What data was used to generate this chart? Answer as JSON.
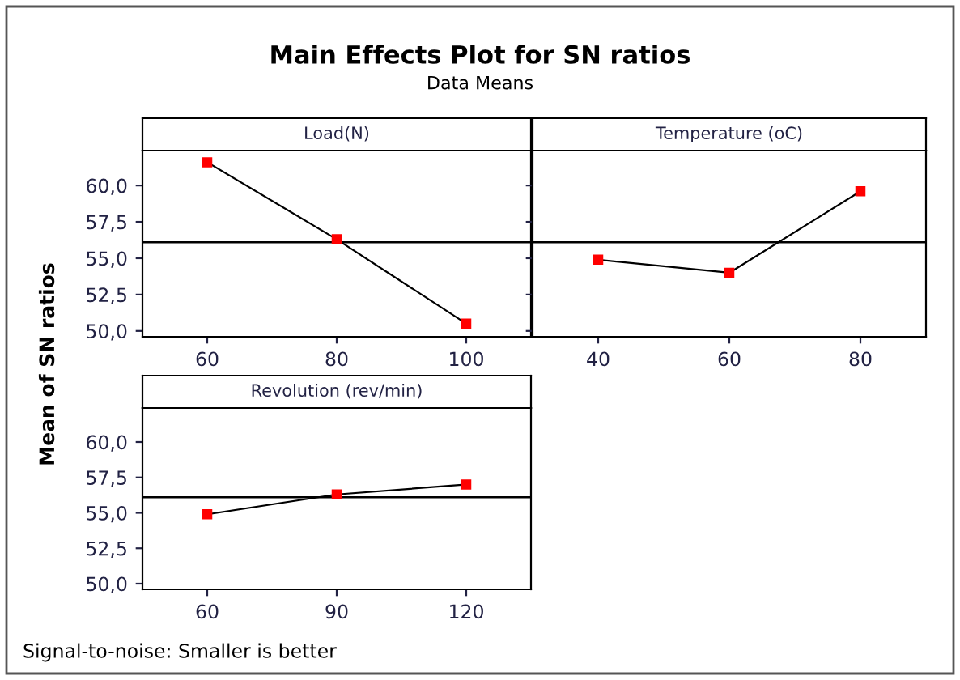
{
  "chart_data": [
    {
      "type": "line",
      "title": "Main Effects Plot for SN ratios",
      "subtitle": "Data Means",
      "ylabel": "Mean of SN ratios",
      "xlabel": "Load(N)",
      "annotations": [
        "Signal-to-noise: Smaller is better"
      ],
      "x": [
        60,
        80,
        100
      ],
      "series": [
        {
          "color": "#000000",
          "values": [
            61.6,
            56.3,
            50.5
          ]
        }
      ],
      "xlim": [
        50,
        110
      ],
      "xticks": [
        60,
        80,
        100
      ],
      "ylim": [
        49.6,
        62.4
      ],
      "yticks": [
        {
          "value": 50,
          "label": "50,0"
        },
        {
          "value": 52.5,
          "label": "52,5"
        },
        {
          "value": 55,
          "label": "55,0"
        },
        {
          "value": 57.5,
          "label": "57,5"
        },
        {
          "value": 60,
          "label": "60,0"
        }
      ],
      "ref_lines": [
        {
          "axis": "y",
          "value": 56.1,
          "color": "#000000"
        }
      ],
      "marker": "square",
      "grid": false,
      "legend": false
    },
    {
      "type": "line",
      "xlabel": "Temperature (oC)",
      "x": [
        40,
        60,
        80
      ],
      "series": [
        {
          "color": "#000000",
          "values": [
            54.9,
            54.0,
            59.6
          ]
        }
      ],
      "xlim": [
        30,
        90
      ],
      "xticks": [
        40,
        60,
        80
      ],
      "ylim": [
        49.6,
        62.4
      ],
      "yticks": [
        {
          "value": 50,
          "label": null
        },
        {
          "value": 52.5,
          "label": null
        },
        {
          "value": 55,
          "label": null
        },
        {
          "value": 57.5,
          "label": null
        },
        {
          "value": 60,
          "label": null
        }
      ],
      "tick_labels": "x",
      "ref_lines": [
        {
          "axis": "y",
          "value": 56.1,
          "color": "#000000"
        }
      ],
      "marker": "square",
      "grid": false,
      "legend": false
    },
    {
      "type": "line",
      "xlabel": "Revolution (rev/min)",
      "x": [
        60,
        90,
        120
      ],
      "series": [
        {
          "color": "#000000",
          "values": [
            54.9,
            56.3,
            57.0
          ]
        }
      ],
      "xlim": [
        45,
        135
      ],
      "xticks": [
        60,
        90,
        120
      ],
      "ylim": [
        49.6,
        62.4
      ],
      "yticks": [
        {
          "value": 50,
          "label": "50,0"
        },
        {
          "value": 52.5,
          "label": "52,5"
        },
        {
          "value": 55,
          "label": "55,0"
        },
        {
          "value": 57.5,
          "label": "57,5"
        },
        {
          "value": 60,
          "label": "60,0"
        }
      ],
      "ref_lines": [
        {
          "axis": "y",
          "value": 56.1,
          "color": "#000000"
        }
      ],
      "marker": "square",
      "grid": false,
      "legend": false
    }
  ]
}
